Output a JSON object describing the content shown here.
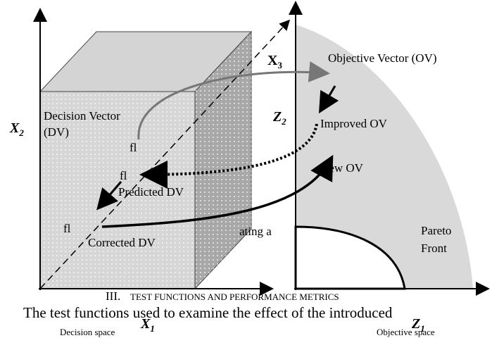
{
  "axes": {
    "x1": {
      "letter": "X",
      "sub": "1"
    },
    "x2": {
      "letter": "X",
      "sub": "2"
    },
    "x3": {
      "letter": "X",
      "sub": "3"
    },
    "z1": {
      "letter": "Z",
      "sub": "1"
    },
    "z2": {
      "letter": "Z",
      "sub": "2"
    }
  },
  "labels": {
    "decision_vector": "Decision Vector",
    "dv": "(DV)",
    "fl": [
      "fl",
      "fl",
      "fl"
    ],
    "predicted_dv": "Predicted DV",
    "corrected_dv": "Corrected DV",
    "fragment": "ating a",
    "objective_vector": "Objective Vector (OV)",
    "improved_ov": "Improved OV",
    "new_ov": "New OV",
    "pareto": "Pareto",
    "front": "Front",
    "decision_space": "Decision space",
    "objective_space": "Objective space"
  },
  "section": {
    "number": "III.",
    "title": "Test Functions and Performance Metrics"
  },
  "body": "The test functions used to examine the effect of the introduced"
}
